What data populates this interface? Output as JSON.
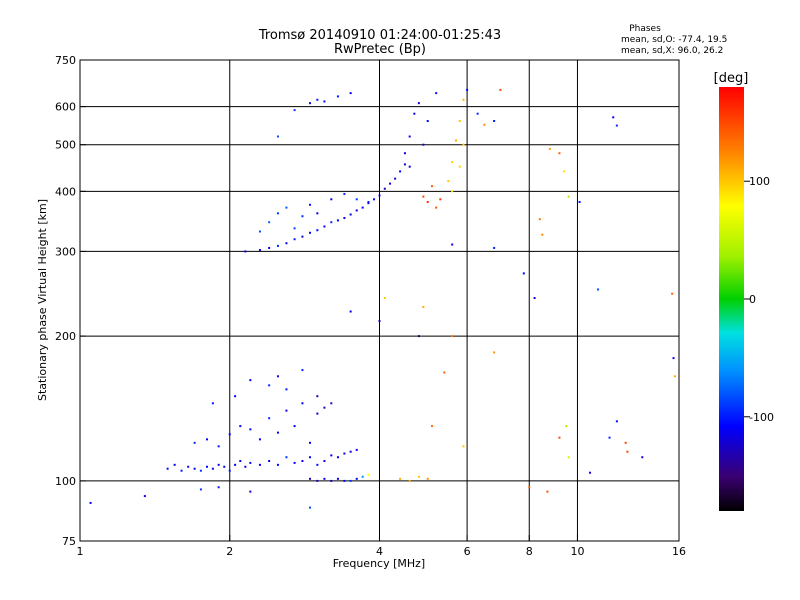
{
  "chart_data": {
    "type": "scatter",
    "title": "Tromsø 20140910 01:24:00-01:25:43",
    "subtitle": "RwPretec (Bp)",
    "xlabel": "Frequency [MHz]",
    "ylabel": "Stationary phase Virtual Height [km]",
    "x_scale": "log",
    "y_scale": "log",
    "xlim": [
      1,
      16
    ],
    "ylim": [
      75,
      750
    ],
    "x_ticks": [
      1,
      2,
      4,
      6,
      8,
      10,
      16
    ],
    "x_tick_labels": [
      "1",
      "2",
      "4",
      "6",
      "8",
      "10",
      "16"
    ],
    "y_ticks": [
      75,
      100,
      200,
      300,
      400,
      500,
      600,
      750
    ],
    "y_tick_labels": [
      "75",
      "100",
      "200",
      "300",
      "400",
      "500",
      "600",
      "750"
    ],
    "x_grid": [
      2,
      4,
      6,
      8,
      10
    ],
    "y_grid": [
      100,
      200,
      300,
      400,
      500,
      600
    ],
    "grid": true,
    "phases_box": {
      "heading": "Phases",
      "line1": "mean, sd,O: -77.4, 19.5",
      "line2": "mean, sd,X:  96.0, 26.2"
    },
    "colorbar": {
      "label": "[deg]",
      "range": [
        -180,
        180
      ],
      "ticks": [
        100,
        0,
        -100
      ],
      "tick_labels": [
        "100",
        "0",
        "-100"
      ]
    },
    "series": [
      {
        "points": [
          [
            1.05,
            90,
            -110
          ],
          [
            1.35,
            93,
            -110
          ],
          [
            1.5,
            106,
            -105
          ],
          [
            1.55,
            108,
            -110
          ],
          [
            1.6,
            105,
            -100
          ],
          [
            1.65,
            107,
            -115
          ],
          [
            1.7,
            106,
            -110
          ],
          [
            1.75,
            105,
            -90
          ],
          [
            1.8,
            107,
            -110
          ],
          [
            1.85,
            106,
            -105
          ],
          [
            1.9,
            108,
            -115
          ],
          [
            1.95,
            107,
            -110
          ],
          [
            2.0,
            105,
            -100
          ],
          [
            2.05,
            108,
            -110
          ],
          [
            2.1,
            110,
            -120
          ],
          [
            2.15,
            107,
            -110
          ],
          [
            2.2,
            109,
            -105
          ],
          [
            2.3,
            108,
            -110
          ],
          [
            2.4,
            110,
            -115
          ],
          [
            2.5,
            108,
            -110
          ],
          [
            2.6,
            112,
            -90
          ],
          [
            2.7,
            109,
            -110
          ],
          [
            2.8,
            110,
            -115
          ],
          [
            2.9,
            112,
            -110
          ],
          [
            3.0,
            108,
            -105
          ],
          [
            3.1,
            110,
            -120
          ],
          [
            3.2,
            113,
            -110
          ],
          [
            3.3,
            112,
            -115
          ],
          [
            3.4,
            114,
            -110
          ],
          [
            3.5,
            115,
            -120
          ],
          [
            3.6,
            116,
            -115
          ],
          [
            1.7,
            120,
            -95
          ],
          [
            1.8,
            122,
            -110
          ],
          [
            1.9,
            118,
            -100
          ],
          [
            2.0,
            125,
            -110
          ],
          [
            2.1,
            130,
            -115
          ],
          [
            2.2,
            128,
            -105
          ],
          [
            2.3,
            122,
            -110
          ],
          [
            2.4,
            135,
            -95
          ],
          [
            2.5,
            126,
            -110
          ],
          [
            2.6,
            140,
            -115
          ],
          [
            2.7,
            130,
            -110
          ],
          [
            2.8,
            145,
            -105
          ],
          [
            2.9,
            120,
            -110
          ],
          [
            3.0,
            150,
            -130
          ],
          [
            3.0,
            138,
            -115
          ],
          [
            3.1,
            142,
            -130
          ],
          [
            3.2,
            145,
            -135
          ],
          [
            2.6,
            155,
            -100
          ],
          [
            2.8,
            170,
            -95
          ],
          [
            1.85,
            145,
            -100
          ],
          [
            2.05,
            150,
            -110
          ],
          [
            2.2,
            162,
            -110
          ],
          [
            2.4,
            158,
            -95
          ],
          [
            2.5,
            165,
            -110
          ],
          [
            2.9,
            101,
            -130
          ],
          [
            3.0,
            100,
            -120
          ],
          [
            3.1,
            101,
            -110
          ],
          [
            3.2,
            100,
            -125
          ],
          [
            3.3,
            101,
            -115
          ],
          [
            3.4,
            100,
            -110
          ],
          [
            3.5,
            100,
            -90
          ],
          [
            3.6,
            101,
            -110
          ],
          [
            3.7,
            102,
            -60
          ],
          [
            3.8,
            103,
            80
          ],
          [
            4.4,
            101,
            110
          ],
          [
            4.6,
            100,
            115
          ],
          [
            4.8,
            102,
            100
          ],
          [
            5.0,
            101,
            120
          ],
          [
            1.75,
            96,
            -90
          ],
          [
            1.9,
            97,
            -100
          ],
          [
            2.2,
            95,
            -120
          ],
          [
            2.9,
            88,
            -80
          ],
          [
            2.15,
            300,
            -110
          ],
          [
            2.3,
            302,
            -105
          ],
          [
            2.4,
            305,
            -110
          ],
          [
            2.5,
            308,
            -95
          ],
          [
            2.6,
            312,
            -110
          ],
          [
            2.7,
            318,
            -100
          ],
          [
            2.8,
            322,
            -115
          ],
          [
            2.9,
            328,
            -110
          ],
          [
            3.0,
            332,
            -105
          ],
          [
            3.1,
            338,
            -110
          ],
          [
            3.2,
            345,
            -95
          ],
          [
            3.3,
            348,
            -110
          ],
          [
            3.4,
            352,
            -115
          ],
          [
            3.5,
            358,
            -110
          ],
          [
            3.6,
            365,
            -120
          ],
          [
            3.7,
            370,
            -110
          ],
          [
            3.8,
            378,
            -115
          ],
          [
            3.9,
            385,
            -110
          ],
          [
            4.0,
            392,
            -120
          ],
          [
            4.1,
            405,
            -130
          ],
          [
            4.2,
            415,
            -115
          ],
          [
            4.3,
            425,
            -120
          ],
          [
            4.4,
            440,
            -110
          ],
          [
            4.5,
            455,
            -115
          ],
          [
            2.3,
            330,
            -80
          ],
          [
            2.4,
            345,
            -75
          ],
          [
            2.5,
            360,
            -90
          ],
          [
            2.6,
            370,
            -80
          ],
          [
            2.7,
            335,
            -85
          ],
          [
            2.8,
            355,
            -95
          ],
          [
            2.9,
            375,
            -100
          ],
          [
            3.0,
            360,
            -110
          ],
          [
            3.2,
            385,
            -110
          ],
          [
            3.4,
            395,
            -95
          ],
          [
            3.6,
            385,
            -90
          ],
          [
            3.8,
            380,
            -100
          ],
          [
            2.5,
            520,
            -80
          ],
          [
            2.9,
            610,
            -110
          ],
          [
            3.0,
            620,
            -100
          ],
          [
            3.1,
            615,
            -105
          ],
          [
            3.3,
            630,
            -100
          ],
          [
            3.5,
            640,
            -110
          ],
          [
            2.7,
            590,
            -90
          ],
          [
            4.5,
            480,
            -120
          ],
          [
            4.6,
            520,
            -110
          ],
          [
            4.7,
            580,
            -115
          ],
          [
            4.8,
            610,
            -120
          ],
          [
            5.0,
            560,
            -110
          ],
          [
            5.2,
            640,
            -105
          ],
          [
            4.9,
            500,
            -130
          ],
          [
            4.6,
            450,
            -115
          ],
          [
            4.9,
            390,
            150
          ],
          [
            5.0,
            380,
            160
          ],
          [
            5.1,
            410,
            140
          ],
          [
            5.2,
            370,
            145
          ],
          [
            5.3,
            385,
            155
          ],
          [
            5.5,
            420,
            100
          ],
          [
            5.6,
            460,
            95
          ],
          [
            5.7,
            510,
            110
          ],
          [
            5.8,
            560,
            100
          ],
          [
            5.9,
            620,
            105
          ],
          [
            5.6,
            400,
            90
          ],
          [
            5.8,
            450,
            95
          ],
          [
            5.9,
            500,
            100
          ],
          [
            6.0,
            650,
            -110
          ],
          [
            6.3,
            580,
            -95
          ],
          [
            6.5,
            550,
            120
          ],
          [
            6.8,
            560,
            -100
          ],
          [
            7.0,
            650,
            150
          ],
          [
            5.6,
            310,
            -115
          ],
          [
            6.8,
            305,
            -100
          ],
          [
            4.1,
            240,
            100
          ],
          [
            4.0,
            215,
            -130
          ],
          [
            3.5,
            225,
            -110
          ],
          [
            4.9,
            230,
            110
          ],
          [
            5.6,
            200,
            130
          ],
          [
            5.1,
            130,
            135
          ],
          [
            5.4,
            168,
            140
          ],
          [
            6.8,
            185,
            120
          ],
          [
            7.8,
            270,
            -110
          ],
          [
            8.2,
            240,
            -115
          ],
          [
            8.4,
            350,
            130
          ],
          [
            8.5,
            325,
            125
          ],
          [
            8.8,
            490,
            115
          ],
          [
            9.2,
            480,
            140
          ],
          [
            9.4,
            440,
            90
          ],
          [
            9.6,
            390,
            40
          ],
          [
            9.5,
            130,
            40
          ],
          [
            9.2,
            123,
            150
          ],
          [
            8.0,
            97,
            140
          ],
          [
            8.7,
            95,
            145
          ],
          [
            10.1,
            380,
            -100
          ],
          [
            11.0,
            250,
            -80
          ],
          [
            11.8,
            570,
            -110
          ],
          [
            12.0,
            548,
            -95
          ],
          [
            11.6,
            123,
            -95
          ],
          [
            12.0,
            133,
            -105
          ],
          [
            12.5,
            120,
            150
          ],
          [
            12.6,
            115,
            150
          ],
          [
            13.5,
            112,
            -120
          ],
          [
            15.5,
            245,
            140
          ],
          [
            15.6,
            180,
            -115
          ],
          [
            15.7,
            165,
            110
          ],
          [
            10.6,
            104,
            -120
          ],
          [
            9.6,
            112,
            60
          ],
          [
            4.8,
            200,
            -160
          ],
          [
            5.9,
            118,
            100
          ]
        ]
      }
    ]
  }
}
